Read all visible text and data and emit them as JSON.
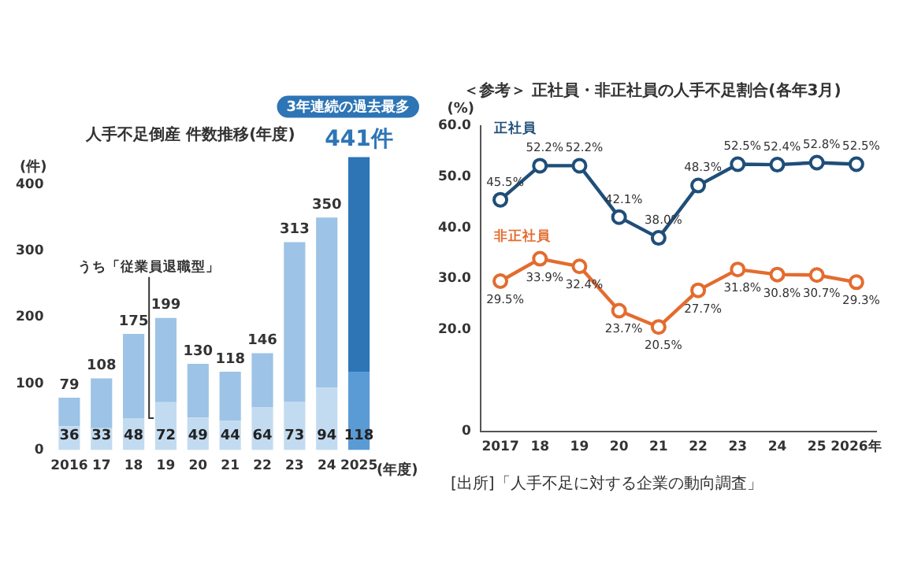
{
  "chart_data": [
    {
      "type": "bar",
      "title": "人手不足倒産 件数推移(年度)",
      "ylabel": "(件)",
      "xlabel": "(年度)",
      "categories": [
        "2016",
        "17",
        "18",
        "19",
        "20",
        "21",
        "22",
        "23",
        "24",
        "2025"
      ],
      "stacked": true,
      "series": [
        {
          "name": "うち「従業員退職型」",
          "colors": [
            "#c3dbf0",
            "#c3dbf0",
            "#c3dbf0",
            "#c3dbf0",
            "#c3dbf0",
            "#c3dbf0",
            "#c3dbf0",
            "#c3dbf0",
            "#c3dbf0",
            "#5b9bd5"
          ],
          "values": [
            36,
            33,
            48,
            72,
            49,
            44,
            64,
            73,
            94,
            118
          ],
          "value_labels": [
            "36",
            "33",
            "48",
            "72",
            "49",
            "44",
            "64",
            "73",
            "94",
            "118"
          ]
        },
        {
          "colors": [
            "#9dc3e6",
            "#9dc3e6",
            "#9dc3e6",
            "#9dc3e6",
            "#9dc3e6",
            "#9dc3e6",
            "#9dc3e6",
            "#9dc3e6",
            "#9dc3e6",
            "#2e75b6"
          ],
          "values": [
            43,
            75,
            127,
            127,
            81,
            74,
            82,
            240,
            256,
            323
          ]
        }
      ],
      "totals": [
        "79",
        "108",
        "175",
        "199",
        "130",
        "118",
        "146",
        "313",
        "350",
        "441件"
      ],
      "ylim": [
        0,
        450
      ],
      "yticks": [
        0,
        100,
        200,
        300,
        400
      ],
      "annotations": [
        "3年連続の過去最多"
      ]
    },
    {
      "type": "line",
      "title": "＜参考＞ 正社員・非正社員の人手不足割合(各年3月)",
      "ylabel": "(%)",
      "categories": [
        "2017",
        "18",
        "19",
        "20",
        "21",
        "22",
        "23",
        "24",
        "25",
        "2026年"
      ],
      "marker": "circle",
      "series": [
        {
          "name": "正社員",
          "color": "#1f4e79",
          "values": [
            45.5,
            52.2,
            52.2,
            42.1,
            38.0,
            48.3,
            52.5,
            52.4,
            52.8,
            52.5
          ],
          "value_labels": [
            "45.5%",
            "52.2%",
            "52.2%",
            "42.1%",
            "38.0%",
            "48.3%",
            "52.5%",
            "52.4%",
            "52.8%",
            "52.5%"
          ]
        },
        {
          "name": "非正社員",
          "color": "#e36c2f",
          "values": [
            29.5,
            33.9,
            32.4,
            23.7,
            20.5,
            27.7,
            31.8,
            30.8,
            30.7,
            29.3
          ],
          "value_labels": [
            "29.5%",
            "33.9%",
            "32.4%",
            "23.7%",
            "20.5%",
            "27.7%",
            "31.8%",
            "30.8%",
            "30.7%",
            "29.3%"
          ]
        }
      ],
      "ylim": [
        0,
        60
      ],
      "yticks": [
        0,
        {
          "value": 20,
          "label": "20.0"
        },
        {
          "value": 30,
          "label": "30.0"
        },
        {
          "value": 40,
          "label": "40.0"
        },
        {
          "value": 50,
          "label": "50.0"
        },
        {
          "value": 60,
          "label": "60.0"
        }
      ],
      "annotations": [
        "[出所]「人手不足に対する企業の動向調査」"
      ]
    }
  ]
}
